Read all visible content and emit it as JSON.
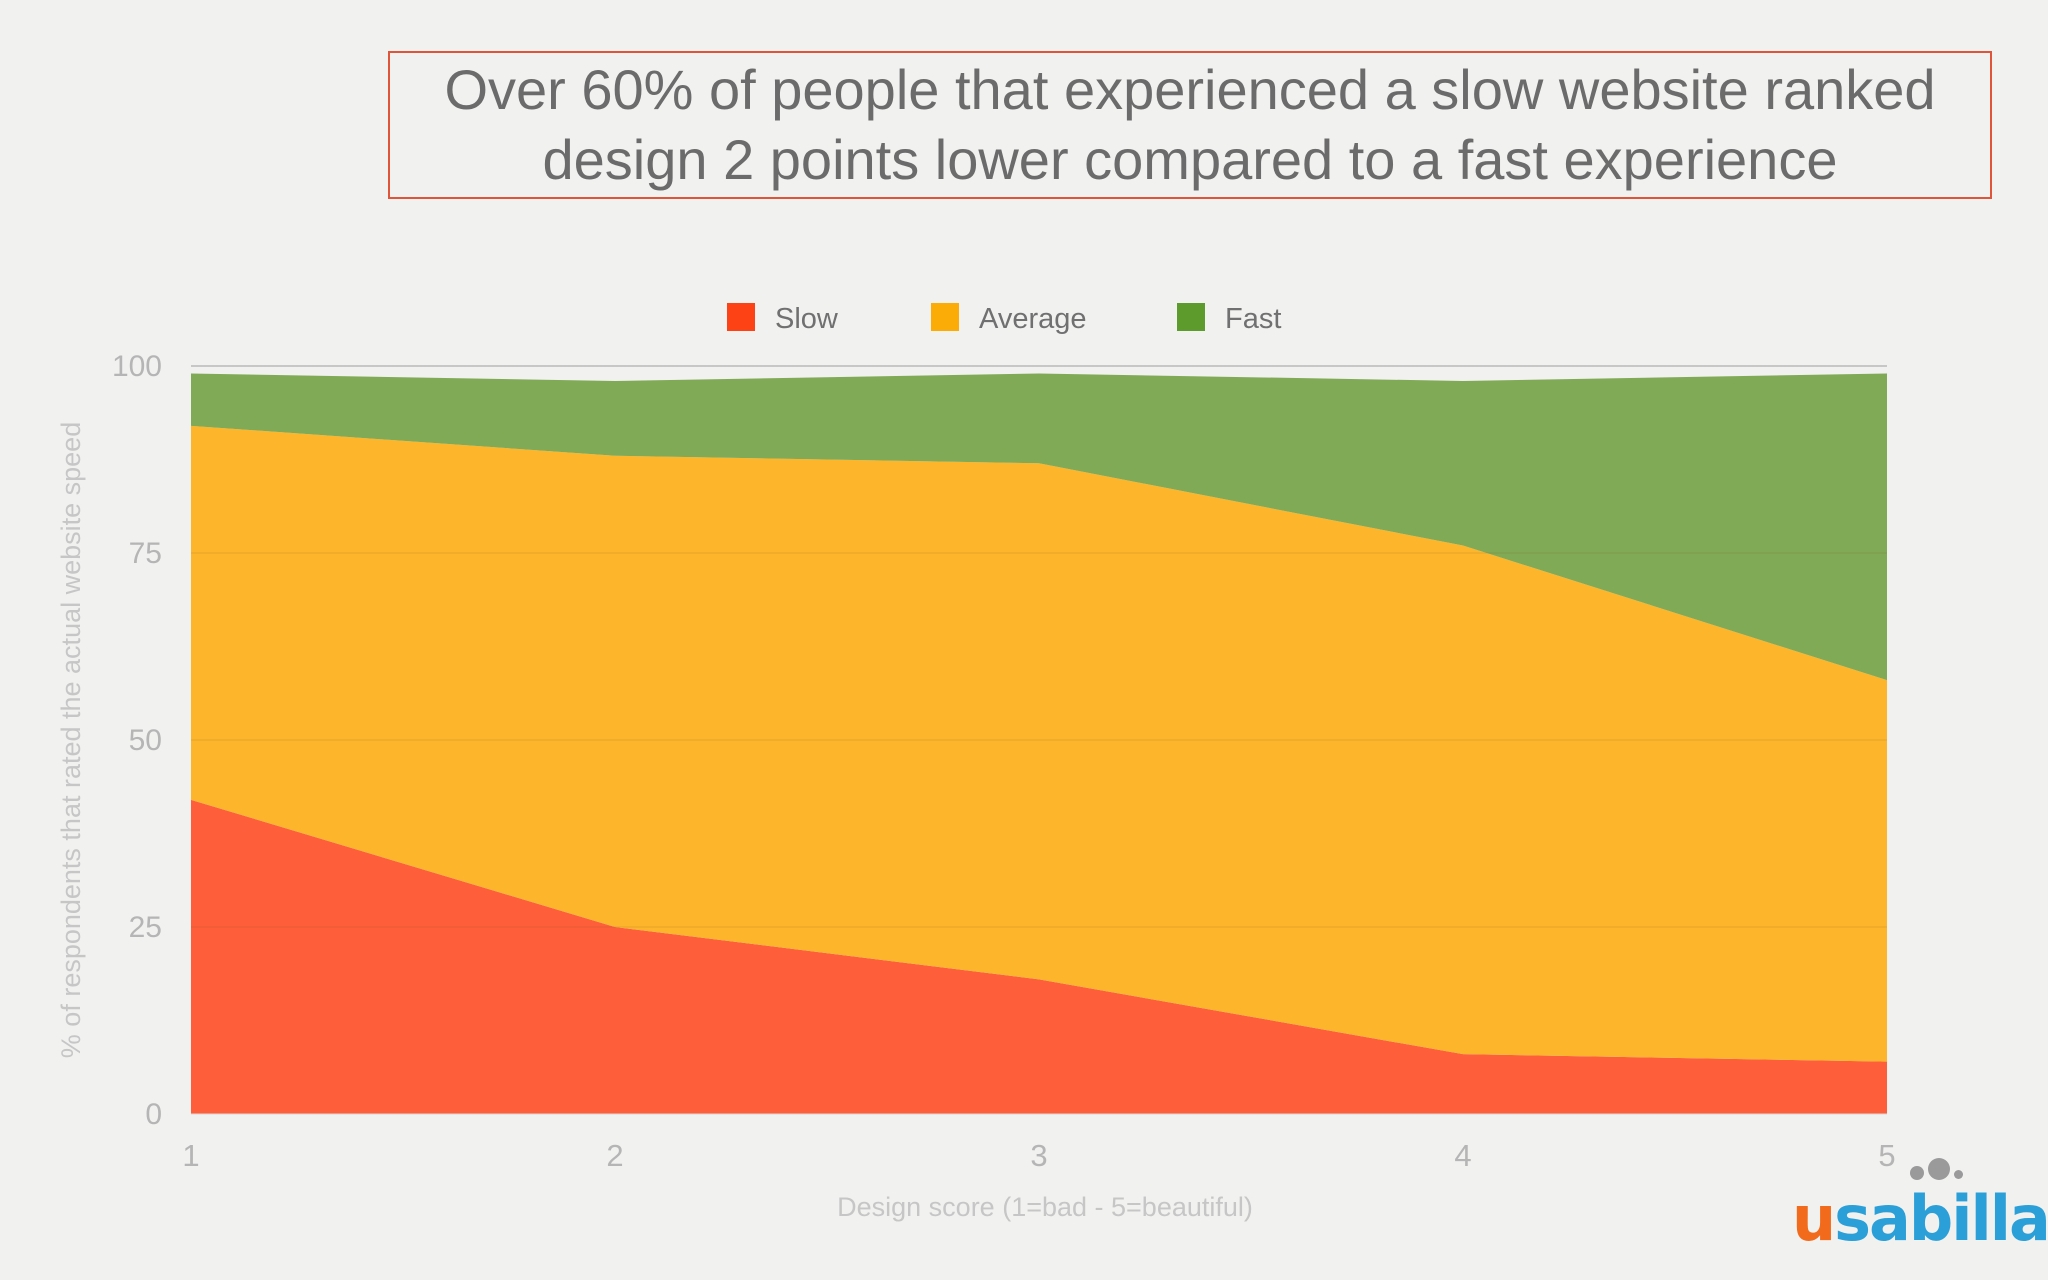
{
  "title_lines": [
    "Over 60% of people that experienced a slow website ranked",
    "design 2 points lower compared to a fast experience"
  ],
  "logo": {
    "text_u": "u",
    "text_rest": "sabilla"
  },
  "colors": {
    "slow": "#fe5f3a",
    "average": "#fdb52b",
    "fast": "#80aa55",
    "legend_slow": "#fd4316",
    "legend_average": "#fcac06",
    "legend_fast": "#5e9b2d",
    "title_border": "#e0553a"
  },
  "chart_data": {
    "type": "area",
    "stacked": true,
    "x": [
      1,
      2,
      3,
      4,
      5
    ],
    "xlabel": "Design score (1=bad - 5=beautiful)",
    "ylabel": "% of respondents that rated the actual website speed",
    "ylim": [
      0,
      100
    ],
    "yticks": [
      0,
      25,
      50,
      75,
      100
    ],
    "xticks": [
      1,
      2,
      3,
      4,
      5
    ],
    "legend_position": "top-center",
    "series": [
      {
        "name": "Slow",
        "values": [
          42,
          25,
          18,
          8,
          7
        ]
      },
      {
        "name": "Average",
        "values": [
          50,
          63,
          69,
          68,
          51
        ]
      },
      {
        "name": "Fast",
        "values": [
          7,
          10,
          12,
          22,
          41
        ]
      }
    ]
  }
}
